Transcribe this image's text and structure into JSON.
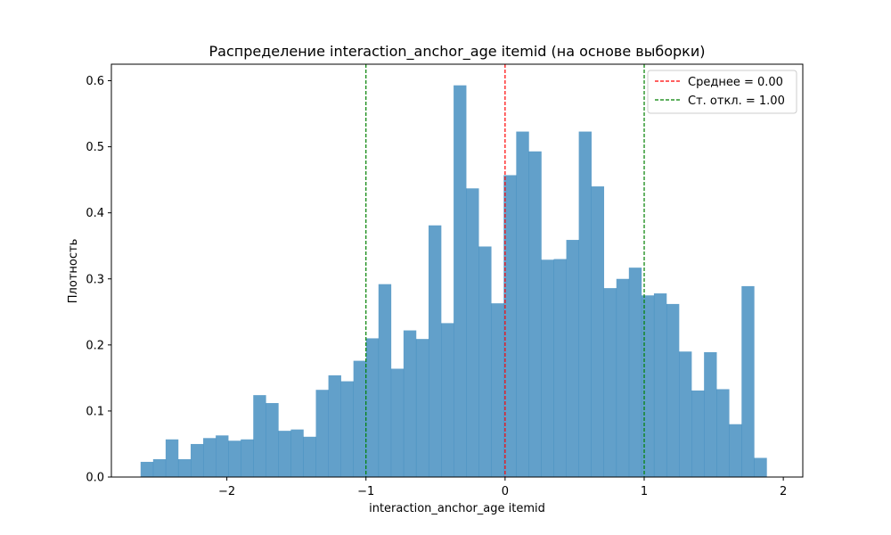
{
  "chart_data": {
    "type": "bar",
    "title": "Распределение interaction_anchor_age itemid (на основе выборки)",
    "xlabel": "interaction_anchor_age itemid",
    "ylabel": "Плотность",
    "xlim": [
      -2.83,
      2.14
    ],
    "ylim": [
      0,
      0.625
    ],
    "x_ticks": [
      -2,
      -1,
      0,
      1,
      2
    ],
    "x_tick_labels": [
      "−2",
      "−1",
      "0",
      "1",
      "2"
    ],
    "y_ticks": [
      0.0,
      0.1,
      0.2,
      0.3,
      0.4,
      0.5,
      0.6
    ],
    "y_tick_labels": [
      "0.0",
      "0.1",
      "0.2",
      "0.3",
      "0.4",
      "0.5",
      "0.6"
    ],
    "grid": false,
    "legend_position": "top-right",
    "bar_color": "#1f77b4",
    "bar_alpha": 0.7,
    "bin_start": -2.62,
    "bin_width": 0.09,
    "values": [
      0.023,
      0.027,
      0.057,
      0.027,
      0.05,
      0.059,
      0.063,
      0.055,
      0.057,
      0.124,
      0.112,
      0.07,
      0.072,
      0.061,
      0.132,
      0.154,
      0.145,
      0.176,
      0.21,
      0.292,
      0.164,
      0.222,
      0.209,
      0.381,
      0.233,
      0.593,
      0.437,
      0.349,
      0.263,
      0.457,
      0.523,
      0.493,
      0.329,
      0.33,
      0.359,
      0.523,
      0.44,
      0.286,
      0.3,
      0.317,
      0.275,
      0.278,
      0.262,
      0.19,
      0.131,
      0.189,
      0.133,
      0.08,
      0.289,
      0.029
    ],
    "vlines": [
      {
        "x": 0.0,
        "color": "#ff0000",
        "label": "Среднее = 0.00"
      },
      {
        "x": -1.0,
        "color": "#008000",
        "label": "Ст. откл. = 1.00"
      },
      {
        "x": 1.0,
        "color": "#008000",
        "label": ""
      }
    ]
  }
}
